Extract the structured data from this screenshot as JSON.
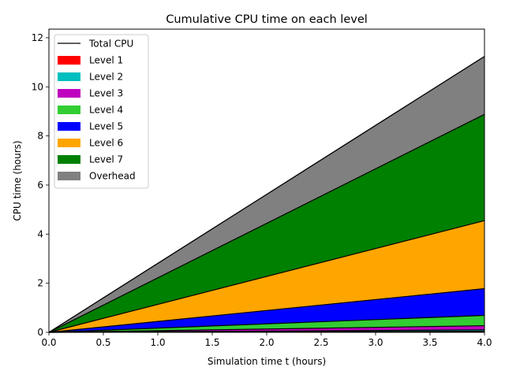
{
  "chart_data": {
    "type": "area",
    "title": "Cumulative CPU time on each level",
    "xlabel": "Simulation time t (hours)",
    "ylabel": "CPU time (hours)",
    "xlim": [
      0.0,
      4.0
    ],
    "ylim": [
      0.0,
      12.35
    ],
    "x_ticks": [
      0.0,
      0.5,
      1.0,
      1.5,
      2.0,
      2.5,
      3.0,
      3.5,
      4.0
    ],
    "x_tick_labels": [
      "0.0",
      "0.5",
      "1.0",
      "1.5",
      "2.0",
      "2.5",
      "3.0",
      "3.5",
      "4.0"
    ],
    "y_ticks": [
      0,
      2,
      4,
      6,
      8,
      10,
      12
    ],
    "y_tick_labels": [
      "0",
      "2",
      "4",
      "6",
      "8",
      "10",
      "12"
    ],
    "grid": false,
    "stacked": true,
    "legend_position": "top-left",
    "x": [
      0.0,
      4.0
    ],
    "series": [
      {
        "name": "Level 1",
        "color": "#ff0000",
        "values": [
          0.0,
          0.04
        ]
      },
      {
        "name": "Level 2",
        "color": "#00bfbf",
        "values": [
          0.0,
          0.06
        ]
      },
      {
        "name": "Level 3",
        "color": "#bf00bf",
        "values": [
          0.0,
          0.17
        ]
      },
      {
        "name": "Level 4",
        "color": "#32cd32",
        "values": [
          0.0,
          0.42
        ]
      },
      {
        "name": "Level 5",
        "color": "#0000ff",
        "values": [
          0.0,
          1.09
        ]
      },
      {
        "name": "Level 6",
        "color": "#ffa500",
        "values": [
          0.0,
          2.77
        ]
      },
      {
        "name": "Level 7",
        "color": "#008000",
        "values": [
          0.0,
          4.33
        ]
      },
      {
        "name": "Overhead",
        "color": "#808080",
        "values": [
          0.0,
          2.36
        ]
      }
    ],
    "total_line": {
      "name": "Total CPU",
      "color": "#000000",
      "values": [
        0.0,
        11.24
      ]
    }
  }
}
